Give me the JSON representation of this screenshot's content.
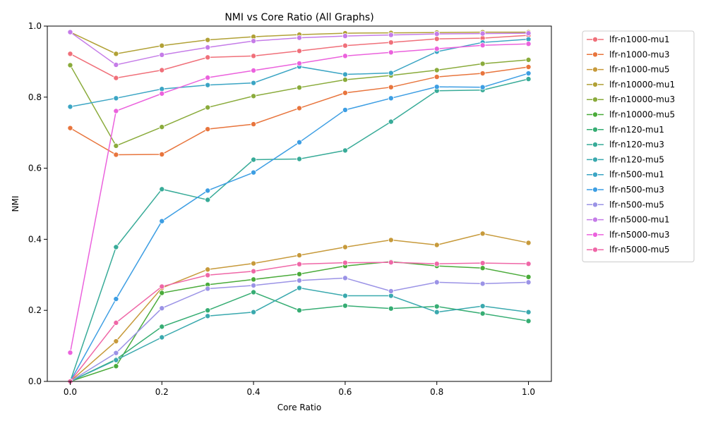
{
  "chart_data": {
    "type": "line",
    "title": "NMI vs Core Ratio (All Graphs)",
    "xlabel": "Core Ratio",
    "ylabel": "NMI",
    "xlim": [
      -0.05,
      1.05
    ],
    "ylim": [
      0,
      1.0
    ],
    "xticks": [
      "0.0",
      "0.2",
      "0.4",
      "0.6",
      "0.8",
      "1.0"
    ],
    "yticks": [
      "0.0",
      "0.2",
      "0.4",
      "0.6",
      "0.8",
      "1.0"
    ],
    "grid": false,
    "legend_position": "outside-top-right",
    "x": [
      0.0,
      0.1,
      0.2,
      0.3,
      0.4,
      0.5,
      0.6,
      0.7,
      0.8,
      0.9,
      1.0
    ],
    "series": [
      {
        "name": "lfr-n1000-mu1",
        "color": "#f0707a",
        "values": [
          0.922,
          0.854,
          0.876,
          0.912,
          0.916,
          0.93,
          0.945,
          0.954,
          0.964,
          0.966,
          0.974
        ]
      },
      {
        "name": "lfr-n1000-mu3",
        "color": "#e8753d",
        "values": [
          0.713,
          0.638,
          0.639,
          0.71,
          0.724,
          0.769,
          0.812,
          0.828,
          0.857,
          0.867,
          0.885
        ]
      },
      {
        "name": "lfr-n1000-mu5",
        "color": "#c79a3b",
        "values": [
          0.0,
          0.113,
          0.263,
          0.315,
          0.332,
          0.355,
          0.378,
          0.398,
          0.384,
          0.416,
          0.39
        ]
      },
      {
        "name": "lfr-n10000-mu1",
        "color": "#b1a136",
        "values": [
          0.983,
          0.922,
          0.945,
          0.961,
          0.97,
          0.976,
          0.98,
          0.981,
          0.982,
          0.983,
          0.983
        ]
      },
      {
        "name": "lfr-n10000-mu3",
        "color": "#8aab3b",
        "values": [
          0.89,
          0.663,
          0.716,
          0.771,
          0.803,
          0.827,
          0.849,
          0.861,
          0.876,
          0.894,
          0.905
        ]
      },
      {
        "name": "lfr-n10000-mu5",
        "color": "#4aab3a",
        "values": [
          0.0,
          0.043,
          0.249,
          0.272,
          0.287,
          0.302,
          0.325,
          0.337,
          0.325,
          0.319,
          0.294
        ]
      },
      {
        "name": "lfr-n120-mu1",
        "color": "#36ad73",
        "values": [
          0.0,
          0.062,
          0.154,
          0.2,
          0.251,
          0.2,
          0.213,
          0.205,
          0.211,
          0.191,
          0.17
        ]
      },
      {
        "name": "lfr-n120-mu3",
        "color": "#38ab98",
        "values": [
          0.0,
          0.378,
          0.541,
          0.511,
          0.624,
          0.626,
          0.65,
          0.731,
          0.818,
          0.82,
          0.851
        ]
      },
      {
        "name": "lfr-n120-mu5",
        "color": "#3aa9ae",
        "values": [
          0.0,
          0.06,
          0.124,
          0.184,
          0.195,
          0.263,
          0.241,
          0.241,
          0.195,
          0.212,
          0.195
        ]
      },
      {
        "name": "lfr-n500-mu1",
        "color": "#3ba5c4",
        "values": [
          0.773,
          0.797,
          0.823,
          0.834,
          0.84,
          0.886,
          0.864,
          0.868,
          0.928,
          0.954,
          0.963
        ]
      },
      {
        "name": "lfr-n500-mu3",
        "color": "#3d9ee3",
        "values": [
          0.0,
          0.232,
          0.451,
          0.537,
          0.588,
          0.673,
          0.764,
          0.797,
          0.829,
          0.828,
          0.867
        ]
      },
      {
        "name": "lfr-n500-mu5",
        "color": "#9b93e6",
        "values": [
          0.0,
          0.08,
          0.206,
          0.261,
          0.27,
          0.284,
          0.291,
          0.254,
          0.279,
          0.275,
          0.279
        ]
      },
      {
        "name": "lfr-n5000-mu1",
        "color": "#c57ce8",
        "values": [
          0.983,
          0.891,
          0.919,
          0.94,
          0.958,
          0.967,
          0.972,
          0.975,
          0.978,
          0.979,
          0.98
        ]
      },
      {
        "name": "lfr-n5000-mu3",
        "color": "#eb62dd",
        "values": [
          0.081,
          0.761,
          0.81,
          0.855,
          0.875,
          0.895,
          0.916,
          0.926,
          0.936,
          0.946,
          0.95
        ]
      },
      {
        "name": "lfr-n5000-mu5",
        "color": "#ef67a7",
        "values": [
          0.0,
          0.165,
          0.267,
          0.299,
          0.31,
          0.33,
          0.334,
          0.335,
          0.331,
          0.333,
          0.331
        ]
      }
    ]
  }
}
